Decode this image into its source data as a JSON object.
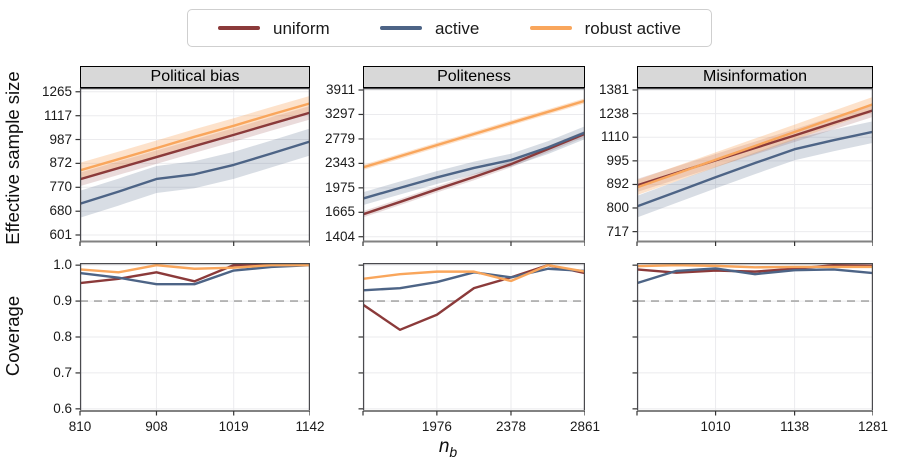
{
  "legend": {
    "items": [
      {
        "label": "uniform",
        "color": "#8b3a3a",
        "band_color": "rgba(139,58,58,0.18)"
      },
      {
        "label": "active",
        "color": "#4d6486",
        "band_color": "rgba(77,100,134,0.22)"
      },
      {
        "label": "robust active",
        "color": "#f9a65c",
        "band_color": "rgba(249,166,92,0.32)"
      }
    ]
  },
  "labels": {
    "ess_ylabel": "Effective sample size",
    "coverage_ylabel": "Coverage",
    "x_base": "n",
    "x_sub": "b"
  },
  "style": {
    "grid_color": "#ebebee",
    "spine_color": "#4a4a4e",
    "bottom_spine_color": "#828282",
    "tick_color": "#333333",
    "dash_line_color": "#b3b3b3",
    "title_bg": "#d8d8d8"
  },
  "chart_data": {
    "type": "line",
    "x_scale": "log",
    "xlabel": "n_b",
    "panels": [
      {
        "title": "Political bias",
        "x": [
          810,
          858,
          908,
          961,
          1019,
          1078,
          1142
        ],
        "x_ticks": [
          810,
          908,
          1019,
          1142
        ],
        "x_tick_labels": [
          "810",
          "908",
          "1019",
          "1142"
        ],
        "ess": {
          "y_ticks": [
            1265,
            1117,
            987,
            872,
            770,
            680,
            601
          ],
          "ylim": [
            581,
            1290
          ],
          "series": [
            {
              "name": "uniform",
              "values": [
                803,
                851,
                901,
                954,
                1011,
                1071,
                1135
              ],
              "band": 0.035
            },
            {
              "name": "active",
              "values": [
                707,
                753,
                804,
                824,
                865,
                918,
                977
              ],
              "band": 0.07
            },
            {
              "name": "robust active",
              "values": [
                841,
                891,
                944,
                1001,
                1060,
                1124,
                1191
              ],
              "band": 0.04
            }
          ]
        },
        "coverage": {
          "y_ticks": [
            1.0,
            0.9,
            0.8,
            0.7,
            0.6
          ],
          "y_tick_labels": [
            "1.0",
            "0.9",
            "0.8",
            "0.7",
            "0.6"
          ],
          "ylim": [
            0.594,
            1.006
          ],
          "target_line": 0.9,
          "series": [
            {
              "name": "uniform",
              "values": [
                0.95,
                0.962,
                0.98,
                0.955,
                1.0,
                1.0,
                1.0
              ]
            },
            {
              "name": "active",
              "values": [
                0.978,
                0.965,
                0.947,
                0.947,
                0.985,
                0.995,
                1.0
              ]
            },
            {
              "name": "robust active",
              "values": [
                0.988,
                0.98,
                1.0,
                0.99,
                0.993,
                1.0,
                1.0
              ]
            }
          ]
        }
      },
      {
        "title": "Politeness",
        "x": [
          1643,
          1802,
          1976,
          2168,
          2378,
          2609,
          2861
        ],
        "x_ticks": [
          1643,
          1976,
          2378,
          2861
        ],
        "x_tick_labels": [
          "",
          "1976",
          "2378",
          "2861"
        ],
        "ess": {
          "y_ticks": [
            3911,
            3297,
            2779,
            2343,
            1975,
            1665,
            1404
          ],
          "ylim": [
            1358,
            3966
          ],
          "series": [
            {
              "name": "uniform",
              "values": [
                1642,
                1790,
                1955,
                2130,
                2330,
                2590,
                2880
              ],
              "band": 0.022
            },
            {
              "name": "active",
              "values": [
                1833,
                1975,
                2124,
                2270,
                2398,
                2620,
                2906
              ],
              "band": 0.045
            },
            {
              "name": "robust active",
              "values": [
                2278,
                2462,
                2661,
                2876,
                3108,
                3359,
                3628
              ],
              "band": 0.018
            }
          ]
        },
        "coverage": {
          "y_ticks": [
            1.0,
            0.9,
            0.8,
            0.7,
            0.6
          ],
          "y_tick_labels": [],
          "ylim": [
            0.594,
            1.006
          ],
          "target_line": 0.9,
          "series": [
            {
              "name": "uniform",
              "values": [
                0.89,
                0.82,
                0.862,
                0.936,
                0.966,
                1.0,
                0.978
              ]
            },
            {
              "name": "active",
              "values": [
                0.93,
                0.936,
                0.953,
                0.98,
                0.966,
                0.99,
                0.984
              ]
            },
            {
              "name": "robust active",
              "values": [
                0.962,
                0.975,
                0.982,
                0.982,
                0.956,
                1.0,
                0.982
              ]
            }
          ]
        }
      },
      {
        "title": "Misinformation",
        "x": [
          897,
          952,
          1010,
          1072,
          1138,
          1207,
          1281
        ],
        "x_ticks": [
          897,
          1010,
          1138,
          1281
        ],
        "x_tick_labels": [
          "",
          "1010",
          "1138",
          "1281"
        ],
        "ess": {
          "y_ticks": [
            1381,
            1238,
            1110,
            995,
            892,
            800,
            717
          ],
          "ylim": [
            685,
            1394
          ],
          "series": [
            {
              "name": "uniform",
              "values": [
                888,
                941,
                997,
                1056,
                1119,
                1186,
                1257
              ],
              "band": 0.03
            },
            {
              "name": "active",
              "values": [
                806,
                862,
                922,
                985,
                1050,
                1095,
                1138
              ],
              "band": 0.05
            },
            {
              "name": "robust active",
              "values": [
                880,
                938,
                1000,
                1066,
                1137,
                1212,
                1293
              ],
              "band": 0.035
            }
          ]
        },
        "coverage": {
          "y_ticks": [
            1.0,
            0.9,
            0.8,
            0.7,
            0.6
          ],
          "y_tick_labels": [],
          "ylim": [
            0.594,
            1.006
          ],
          "target_line": 0.9,
          "series": [
            {
              "name": "uniform",
              "values": [
                0.988,
                0.979,
                0.985,
                0.982,
                0.99,
                1.0,
                0.998
              ]
            },
            {
              "name": "active",
              "values": [
                0.95,
                0.984,
                0.991,
                0.975,
                0.986,
                0.988,
                0.978
              ]
            },
            {
              "name": "robust active",
              "values": [
                0.997,
                1.0,
                0.998,
                0.994,
                0.995,
                0.995,
                0.995
              ]
            }
          ]
        }
      }
    ]
  }
}
